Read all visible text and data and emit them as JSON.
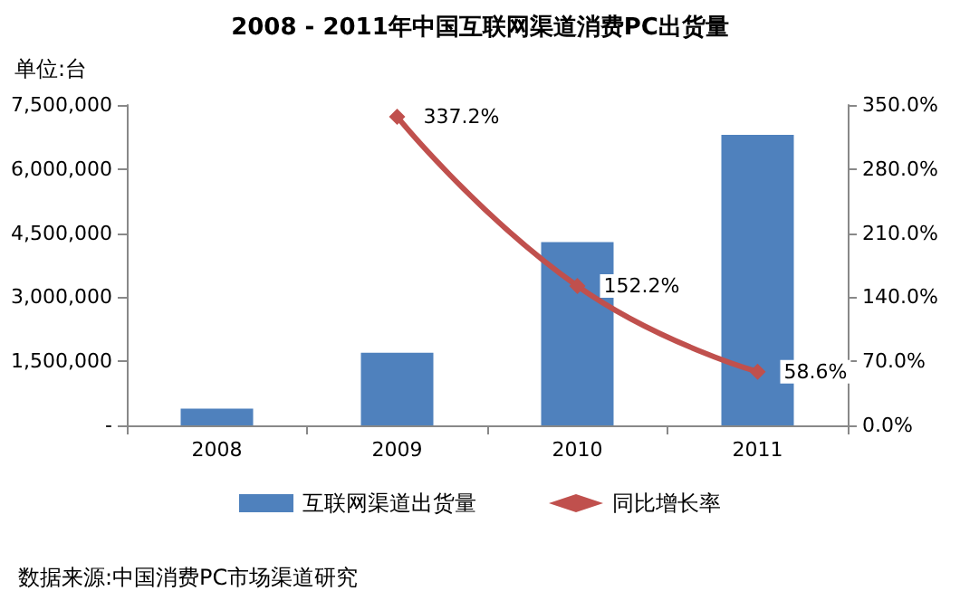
{
  "chart_data": {
    "type": "bar",
    "title": "2008 - 2011年中国互联网渠道消费PC出货量",
    "ylabel": "单位:台",
    "categories": [
      "2008",
      "2009",
      "2010",
      "2011"
    ],
    "series": [
      {
        "name": "互联网渠道出货量",
        "color": "#4f81bd",
        "values": [
          390000,
          1700000,
          4290000,
          6800000
        ]
      },
      {
        "name": "同比增长率",
        "type": "line",
        "axis": "y2",
        "color": "#c0504d",
        "marker": "diamond",
        "values": [
          null,
          337.2,
          152.2,
          58.6
        ],
        "value_labels": [
          null,
          "337.2%",
          "152.2%",
          "58.6%"
        ]
      }
    ],
    "ylim": [
      0,
      7500000
    ],
    "yticks": [
      {
        "value": 0,
        "label": "-"
      },
      {
        "value": 1500000,
        "label": "1,500,000"
      },
      {
        "value": 3000000,
        "label": "3,000,000"
      },
      {
        "value": 4500000,
        "label": "4,500,000"
      },
      {
        "value": 6000000,
        "label": "6,000,000"
      },
      {
        "value": 7500000,
        "label": "7,500,000"
      }
    ],
    "y2lim": [
      0,
      350
    ],
    "y2ticks": [
      {
        "value": 0,
        "label": "0.0%"
      },
      {
        "value": 70,
        "label": "70.0%"
      },
      {
        "value": 140,
        "label": "140.0%"
      },
      {
        "value": 210,
        "label": "210.0%"
      },
      {
        "value": 280,
        "label": "280.0%"
      },
      {
        "value": 350,
        "label": "350.0%"
      }
    ],
    "grid": false,
    "legend": "bottom",
    "annotations": [
      "数据来源:中国消费PC市场渠道研究"
    ]
  }
}
